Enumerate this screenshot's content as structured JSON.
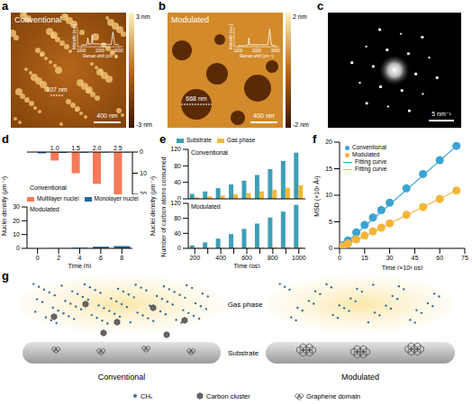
{
  "images": [
    {
      "panel": "a",
      "label": "Conventional",
      "scale_bar": "400 nm",
      "measure": "107 nm",
      "colorbar": {
        "ticks": [
          {
            "value": 3,
            "label": "3 nm"
          },
          {
            "value": -3,
            "label": "-3 nm"
          }
        ]
      },
      "inset": {
        "xlabel": "Raman shift (cm⁻¹)",
        "ylabel": "Intensity (a.u.)",
        "xlim": [
          800,
          3200
        ],
        "xticks": [
          1000,
          2000,
          3000
        ],
        "ylim": [
          0,
          1
        ],
        "tick_labels": "x",
        "x": [
          1000,
          1300,
          1350,
          1400,
          1550,
          1580,
          1620,
          2600,
          2690,
          2780,
          3000
        ],
        "values": [
          0.08,
          0.1,
          0.45,
          0.12,
          0.15,
          0.6,
          0.15,
          0.12,
          0.75,
          0.12,
          0.1
        ]
      }
    },
    {
      "panel": "b",
      "label": "Modulated",
      "scale_bar": "400 nm",
      "measure": "668 nm",
      "colorbar": {
        "ticks": [
          {
            "value": 2,
            "label": "2 nm"
          },
          {
            "value": -2,
            "label": "-2 nm"
          }
        ]
      },
      "inset": {
        "xlabel": "Raman shift (cm⁻¹)",
        "ylabel": "Intensity (a.u.)",
        "xlim": [
          800,
          3200
        ],
        "xticks": [
          1000,
          2000,
          3000
        ],
        "ylim": [
          0,
          1
        ],
        "tick_labels": "x",
        "x": [
          1000,
          1300,
          1350,
          1400,
          1550,
          1580,
          1620,
          2600,
          2690,
          2780,
          3000
        ],
        "values": [
          0.05,
          0.05,
          0.08,
          0.05,
          0.1,
          0.45,
          0.1,
          0.1,
          0.9,
          0.1,
          0.05
        ]
      }
    },
    {
      "panel": "c",
      "scale_bar": "5 nm⁻¹"
    }
  ],
  "chart_data": [
    {
      "panel": "d",
      "type": "bar",
      "title": "Conventional",
      "ylabel": "Nuclei density (μm⁻²)",
      "categories": [
        0,
        2,
        4,
        6,
        8
      ],
      "ylim": [
        20,
        0
      ],
      "yticks": [
        0,
        10,
        20
      ],
      "tick_labels": "y",
      "legend": "left",
      "annotations": [
        {
          "x": 2,
          "text": "1.0"
        },
        {
          "x": 4,
          "text": "1.5"
        },
        {
          "x": 6,
          "text": "2.0"
        },
        {
          "x": 8,
          "text": "2.5"
        }
      ],
      "series": [
        {
          "name": "Multilayer nuclei",
          "color": "#f47a5a",
          "values": [
            0,
            4,
            10,
            15,
            20
          ]
        },
        {
          "name": "Monolayer nuclei",
          "color": "#2166ac",
          "values": [
            0.6,
            0.4,
            0.3,
            0.2,
            0.2
          ]
        }
      ]
    },
    {
      "panel": "d",
      "type": "bar",
      "title": "Modulated",
      "ylabel": "Nuclei density (μm⁻²)",
      "xlabel": "Time (h)",
      "categories": [
        0,
        2,
        4,
        6,
        8
      ],
      "ylim": [
        0,
        30
      ],
      "yticks": [
        0,
        10,
        20,
        30
      ],
      "series": [
        {
          "name": "Monolayer nuclei",
          "color": "#2166ac",
          "values": [
            0,
            0.1,
            0.4,
            1.2,
            1.6
          ]
        }
      ]
    },
    {
      "panel": "e",
      "type": "bar",
      "title": "Conventional",
      "ylabel": "Number of carbon atoms consumed",
      "categories": [
        200,
        null,
        400,
        null,
        600,
        null,
        800,
        null,
        1000
      ],
      "ylim": [
        0,
        120
      ],
      "yticks": [
        0,
        40,
        80,
        120
      ],
      "tick_labels": "y",
      "legend": "top",
      "series": [
        {
          "name": "Substrate",
          "color": "#3d9fb5",
          "values": [
            12,
            18,
            26,
            35,
            44,
            58,
            72,
            92,
            112
          ]
        },
        {
          "name": "Gas phase",
          "color": "#f2b93b",
          "values": [
            4,
            6,
            8,
            11,
            14,
            18,
            22,
            27,
            33
          ]
        }
      ]
    },
    {
      "panel": "e",
      "type": "bar",
      "title": "Modulated",
      "xlabel": "Time (ps)",
      "categories": [
        200,
        null,
        400,
        null,
        600,
        null,
        800,
        null,
        1000
      ],
      "ylim": [
        0,
        120
      ],
      "yticks": [
        0,
        40,
        80,
        120
      ],
      "series": [
        {
          "name": "Substrate",
          "color": "#3d9fb5",
          "values": [
            8,
            16,
            26,
            38,
            52,
            66,
            82,
            98,
            116
          ]
        },
        {
          "name": "Gas phase",
          "color": "#f2b93b",
          "values": [
            1,
            1,
            1,
            2,
            2,
            2,
            3,
            3,
            3
          ]
        }
      ]
    },
    {
      "panel": "f",
      "type": "scatter",
      "xlabel": "Time (×10³ ps)",
      "ylabel": "MSD (×10³ Å²)",
      "xlim": [
        0,
        75
      ],
      "xticks": [
        0,
        15,
        30,
        45,
        60,
        75
      ],
      "ylim": [
        0,
        20
      ],
      "yticks": [
        0,
        5,
        10,
        15,
        20
      ],
      "legend": "top-left",
      "series": [
        {
          "name": "Conventional",
          "color": "#3aa3d4",
          "marker": "circle",
          "x": [
            2,
            5,
            10,
            15,
            20,
            25,
            30,
            40,
            50,
            60,
            70
          ],
          "values": [
            0.6,
            1.5,
            3.0,
            4.4,
            5.8,
            7.2,
            8.6,
            11.3,
            14.0,
            16.6,
            19.3
          ]
        },
        {
          "name": "Modulated",
          "color": "#f5b53a",
          "marker": "circle",
          "x": [
            2,
            5,
            10,
            15,
            20,
            25,
            30,
            40,
            50,
            60,
            70
          ],
          "values": [
            0.4,
            0.9,
            1.7,
            2.4,
            3.2,
            3.9,
            4.7,
            6.3,
            7.8,
            9.3,
            10.9
          ]
        },
        {
          "name": "Fitting curve",
          "type": "line",
          "color": "#3aa3d4",
          "x": [
            0,
            72
          ],
          "values": [
            0,
            19.8
          ]
        },
        {
          "name": "Fitting curve",
          "type": "line",
          "color": "#f5b53a",
          "x": [
            0,
            72
          ],
          "values": [
            0,
            11.2
          ]
        }
      ]
    }
  ],
  "diagram": {
    "panel": "g",
    "titles": [
      "Conventional",
      "Modulated"
    ],
    "gas_label": "Gas phase",
    "substrate_label": "Substrate",
    "key_items": [
      "CHₓ",
      "Carbon cluster",
      "Graphene domain"
    ]
  }
}
